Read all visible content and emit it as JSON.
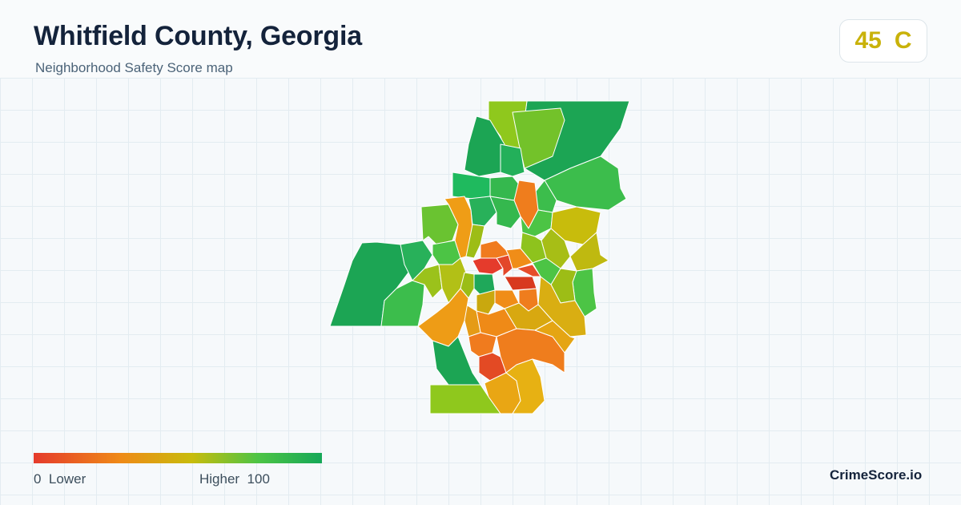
{
  "header": {
    "title": "Whitfield County, Georgia",
    "subtitle": "Neighborhood Safety Score map"
  },
  "score": {
    "value": "45",
    "grade": "C",
    "color": "#c9b20a"
  },
  "legend": {
    "min_value": "0",
    "min_label": "Lower",
    "max_label": "Higher",
    "max_value": "100",
    "colors": [
      "#e53b2c",
      "#ef8a17",
      "#c8bc0c",
      "#4cc445",
      "#16a858"
    ]
  },
  "brand": {
    "name": "CrimeScore.io"
  },
  "map": {
    "color_scale": {
      "low": "#e53b2c",
      "mid_low": "#ef8a17",
      "mid": "#c8bc0c",
      "mid_high": "#4cc445",
      "high": "#16a858"
    }
  }
}
